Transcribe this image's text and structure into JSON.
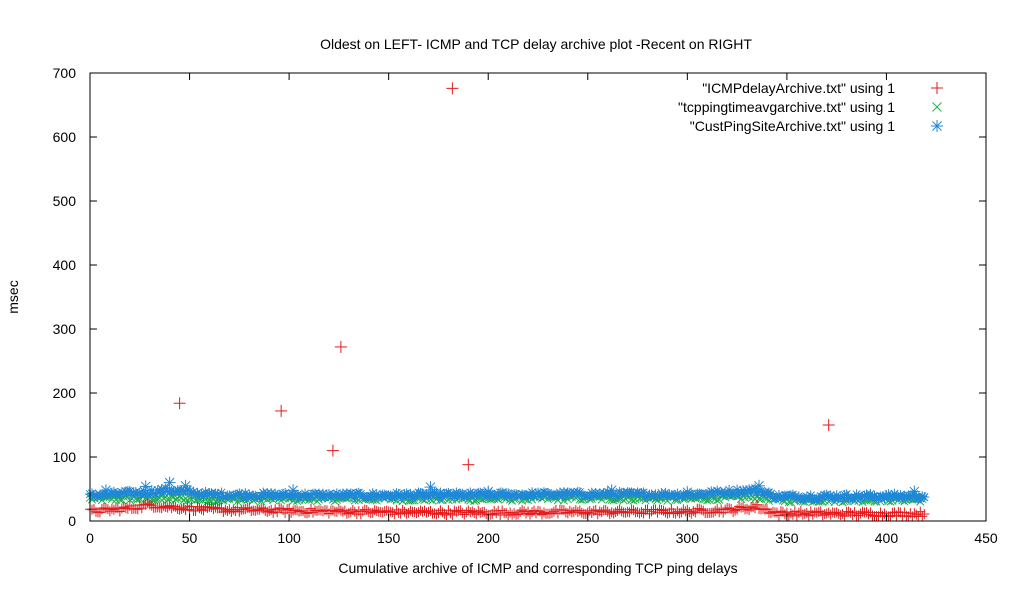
{
  "chart_data": {
    "type": "scatter",
    "title": "Oldest on LEFT- ICMP and TCP delay archive plot -Recent on RIGHT",
    "xlabel": "Cumulative archive of ICMP and corresponding TCP ping delays",
    "ylabel": "msec",
    "xlim": [
      0,
      450
    ],
    "ylim": [
      0,
      700
    ],
    "x_ticks": [
      0,
      50,
      100,
      150,
      200,
      250,
      300,
      350,
      400,
      450
    ],
    "y_ticks": [
      0,
      100,
      200,
      300,
      400,
      500,
      600,
      700
    ],
    "grid": false,
    "legend_position": "top-right",
    "series": [
      {
        "name": "\"ICMPdelayArchive.txt\" using 1",
        "marker": "plus",
        "color": "#e31a1c",
        "index_start": 0,
        "index_end": 419,
        "baseline": [
          [
            0,
            15
          ],
          [
            20,
            20
          ],
          [
            30,
            25
          ],
          [
            40,
            22
          ],
          [
            60,
            18
          ],
          [
            100,
            16
          ],
          [
            150,
            14
          ],
          [
            200,
            13
          ],
          [
            250,
            14
          ],
          [
            300,
            15
          ],
          [
            320,
            17
          ],
          [
            335,
            22
          ],
          [
            345,
            12
          ],
          [
            400,
            11
          ],
          [
            419,
            11
          ]
        ],
        "outliers": [
          [
            45,
            184
          ],
          [
            96,
            172
          ],
          [
            122,
            110
          ],
          [
            126,
            272
          ],
          [
            182,
            676
          ],
          [
            190,
            88
          ],
          [
            371,
            150
          ]
        ]
      },
      {
        "name": "\"tcppingtimeavgarchive.txt\" using 1",
        "marker": "cross",
        "color": "#22b14c",
        "index_start": 0,
        "index_end": 419,
        "baseline": [
          [
            0,
            35
          ],
          [
            30,
            36
          ],
          [
            60,
            34
          ],
          [
            120,
            35
          ],
          [
            200,
            35
          ],
          [
            250,
            36
          ],
          [
            300,
            35
          ],
          [
            335,
            38
          ],
          [
            345,
            33
          ],
          [
            419,
            34
          ]
        ],
        "outliers": []
      },
      {
        "name": "\"CustPingSiteArchive.txt\" using 1",
        "marker": "star",
        "color": "#1f88d6",
        "index_start": 0,
        "index_end": 419,
        "baseline": [
          [
            0,
            40
          ],
          [
            25,
            44
          ],
          [
            40,
            48
          ],
          [
            60,
            41
          ],
          [
            120,
            40
          ],
          [
            200,
            41
          ],
          [
            250,
            42
          ],
          [
            300,
            41
          ],
          [
            335,
            48
          ],
          [
            345,
            38
          ],
          [
            419,
            39
          ]
        ],
        "outliers": [
          [
            8,
            48
          ],
          [
            28,
            54
          ],
          [
            40,
            60
          ],
          [
            48,
            55
          ],
          [
            102,
            48
          ],
          [
            171,
            53
          ],
          [
            200,
            46
          ],
          [
            262,
            48
          ],
          [
            300,
            45
          ],
          [
            336,
            55
          ],
          [
            414,
            46
          ]
        ]
      }
    ]
  }
}
